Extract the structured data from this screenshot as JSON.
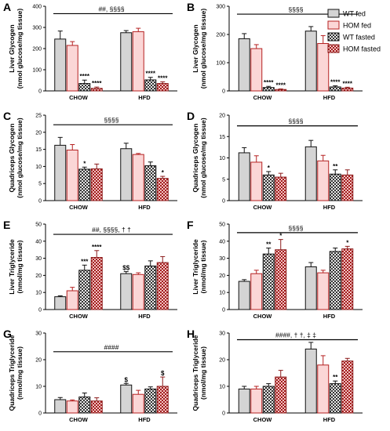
{
  "legend": {
    "entries": [
      {
        "label": "WT fed",
        "fill": "#d4d4d4",
        "stroke": "#111111",
        "pattern": "solid"
      },
      {
        "label": "HOM fed",
        "fill": "#fbd6d6",
        "stroke": "#b52020",
        "pattern": "solid"
      },
      {
        "label": "WT fasted",
        "fill": "#555555",
        "stroke": "#111111",
        "pattern": "checker"
      },
      {
        "label": "HOM fasted",
        "fill": "#b52020",
        "stroke": "#8b1a1a",
        "pattern": "checker"
      }
    ]
  },
  "chart_data": [
    {
      "type": "bar",
      "panel": "A",
      "ylabel_lines": [
        "Liver Glycogen",
        "(nmol glucose/mg tissue)"
      ],
      "categories": [
        "CHOW",
        "HFD"
      ],
      "ylim": [
        0,
        400
      ],
      "yticks": [
        0,
        100,
        200,
        300,
        400
      ],
      "series": [
        {
          "values": [
            245,
            275
          ],
          "errors": [
            38,
            10
          ]
        },
        {
          "values": [
            215,
            280
          ],
          "errors": [
            18,
            16
          ]
        },
        {
          "values": [
            35,
            52
          ],
          "errors": [
            16,
            12
          ]
        },
        {
          "values": [
            12,
            35
          ],
          "errors": [
            6,
            8
          ]
        }
      ],
      "annotations": [
        "",
        "",
        "****",
        "****",
        "",
        "",
        "****",
        "****"
      ],
      "bracket": {
        "text": "##, §§§§",
        "y": 365
      }
    },
    {
      "type": "bar",
      "panel": "B",
      "ylabel_lines": [
        "Liver Glycogen",
        "(nmol glucose/mg tissue)"
      ],
      "categories": [
        "CHOW",
        "HFD"
      ],
      "ylim": [
        0,
        300
      ],
      "yticks": [
        0,
        100,
        200,
        300
      ],
      "series": [
        {
          "values": [
            185,
            212
          ],
          "errors": [
            18,
            16
          ]
        },
        {
          "values": [
            150,
            168
          ],
          "errors": [
            14,
            28
          ]
        },
        {
          "values": [
            12,
            14
          ],
          "errors": [
            4,
            4
          ]
        },
        {
          "values": [
            5,
            10
          ],
          "errors": [
            2,
            3
          ]
        }
      ],
      "annotations": [
        "",
        "",
        "****",
        "****",
        "",
        "",
        "****",
        "****"
      ],
      "bracket": {
        "text": "§§§§",
        "y": 272
      }
    },
    {
      "type": "bar",
      "panel": "C",
      "ylabel_lines": [
        "Quadriceps Glycogen",
        "(nmol glucose/mg tissue)"
      ],
      "categories": [
        "CHOW",
        "HFD"
      ],
      "ylim": [
        0,
        25
      ],
      "yticks": [
        0,
        5,
        10,
        15,
        20,
        25
      ],
      "series": [
        {
          "values": [
            16.2,
            15.2
          ],
          "errors": [
            2.3,
            1.6
          ]
        },
        {
          "values": [
            14.8,
            13.5
          ],
          "errors": [
            1.6,
            0.3
          ]
        },
        {
          "values": [
            9.2,
            10.2
          ],
          "errors": [
            0.6,
            1.1
          ]
        },
        {
          "values": [
            9.3,
            6.5
          ],
          "errors": [
            1.4,
            0.6
          ]
        }
      ],
      "annotations": [
        "",
        "",
        "*",
        "",
        "",
        "",
        "",
        "*"
      ],
      "bracket": {
        "text": "§§§§",
        "y": 22.2
      }
    },
    {
      "type": "bar",
      "panel": "D",
      "ylabel_lines": [
        "Quadriceps Glycogen",
        "(nmol glucose/mg tissue)"
      ],
      "categories": [
        "CHOW",
        "HFD"
      ],
      "ylim": [
        0,
        20
      ],
      "yticks": [
        0,
        5,
        10,
        15,
        20
      ],
      "series": [
        {
          "values": [
            11.2,
            12.6
          ],
          "errors": [
            1.2,
            1.5
          ]
        },
        {
          "values": [
            9.0,
            9.3
          ],
          "errors": [
            1.5,
            1.3
          ]
        },
        {
          "values": [
            6.0,
            6.2
          ],
          "errors": [
            0.8,
            1.0
          ]
        },
        {
          "values": [
            5.5,
            6.0
          ],
          "errors": [
            0.9,
            1.2
          ]
        }
      ],
      "annotations": [
        "",
        "",
        "*",
        "",
        "",
        "",
        "**",
        ""
      ],
      "bracket": {
        "text": "§§§§",
        "y": 17.5
      }
    },
    {
      "type": "bar",
      "panel": "E",
      "ylabel_lines": [
        "Liver Triglyceride",
        "(nmol/mg tissue)"
      ],
      "categories": [
        "CHOW",
        "HFD"
      ],
      "ylim": [
        0,
        50
      ],
      "yticks": [
        0,
        10,
        20,
        30,
        40,
        50
      ],
      "series": [
        {
          "values": [
            7.5,
            21
          ],
          "errors": [
            0.5,
            1.2
          ]
        },
        {
          "values": [
            11,
            20.5
          ],
          "errors": [
            2,
            1.0
          ]
        },
        {
          "values": [
            23,
            25.5
          ],
          "errors": [
            3,
            3
          ]
        },
        {
          "values": [
            30.5,
            27.5
          ],
          "errors": [
            4,
            3.5
          ]
        }
      ],
      "annotations": [
        "",
        "",
        "***",
        "****",
        "$$",
        "",
        "",
        ""
      ],
      "bracket": {
        "text": "##, §§§§, † †",
        "y": 44
      }
    },
    {
      "type": "bar",
      "panel": "F",
      "ylabel_lines": [
        "Liver Triglyceride",
        "(nmol/mg tissue)"
      ],
      "categories": [
        "CHOW",
        "HFD"
      ],
      "ylim": [
        0,
        50
      ],
      "yticks": [
        0,
        10,
        20,
        30,
        40,
        50
      ],
      "series": [
        {
          "values": [
            16.5,
            25
          ],
          "errors": [
            1,
            2.5
          ]
        },
        {
          "values": [
            21,
            21.5
          ],
          "errors": [
            2,
            1.5
          ]
        },
        {
          "values": [
            32.5,
            34
          ],
          "errors": [
            3.5,
            2
          ]
        },
        {
          "values": [
            35,
            35.5
          ],
          "errors": [
            6,
            1.5
          ]
        }
      ],
      "annotations": [
        "",
        "",
        "**",
        "*",
        "",
        "",
        "",
        "*"
      ],
      "bracket": {
        "text": "§§§§",
        "y": 45
      }
    },
    {
      "type": "bar",
      "panel": "G",
      "ylabel_lines": [
        "Quadriceps Triglyceride",
        "(nmol/mg tissue)"
      ],
      "categories": [
        "CHOW",
        "HFD"
      ],
      "ylim": [
        0,
        30
      ],
      "yticks": [
        0,
        10,
        20,
        30
      ],
      "series": [
        {
          "values": [
            5,
            10.5
          ],
          "errors": [
            0.8,
            0.6
          ]
        },
        {
          "values": [
            4.5,
            7
          ],
          "errors": [
            0.4,
            1.5
          ]
        },
        {
          "values": [
            6,
            9
          ],
          "errors": [
            1.5,
            0.8
          ]
        },
        {
          "values": [
            4.5,
            10
          ],
          "errors": [
            1.2,
            3.5
          ]
        }
      ],
      "annotations": [
        "",
        "",
        "",
        "",
        "$",
        "",
        "",
        "$"
      ],
      "bracket": {
        "text": "####",
        "y": 23
      }
    },
    {
      "type": "bar",
      "panel": "H",
      "ylabel_lines": [
        "Quadriceps Triglyceride",
        "(nmol/mg tissue)"
      ],
      "categories": [
        "CHOW",
        "HFD"
      ],
      "ylim": [
        0,
        30
      ],
      "yticks": [
        0,
        10,
        20,
        30
      ],
      "series": [
        {
          "values": [
            9,
            24
          ],
          "errors": [
            1,
            2.5
          ]
        },
        {
          "values": [
            9,
            18
          ],
          "errors": [
            1,
            3.5
          ]
        },
        {
          "values": [
            10,
            11
          ],
          "errors": [
            1,
            1
          ]
        },
        {
          "values": [
            13.5,
            19.5
          ],
          "errors": [
            2.5,
            1
          ]
        }
      ],
      "annotations": [
        "",
        "",
        "",
        "",
        "",
        "",
        "**",
        ""
      ],
      "bracket": {
        "text": "####, † †, ‡ ‡",
        "y": 27.5
      }
    }
  ]
}
